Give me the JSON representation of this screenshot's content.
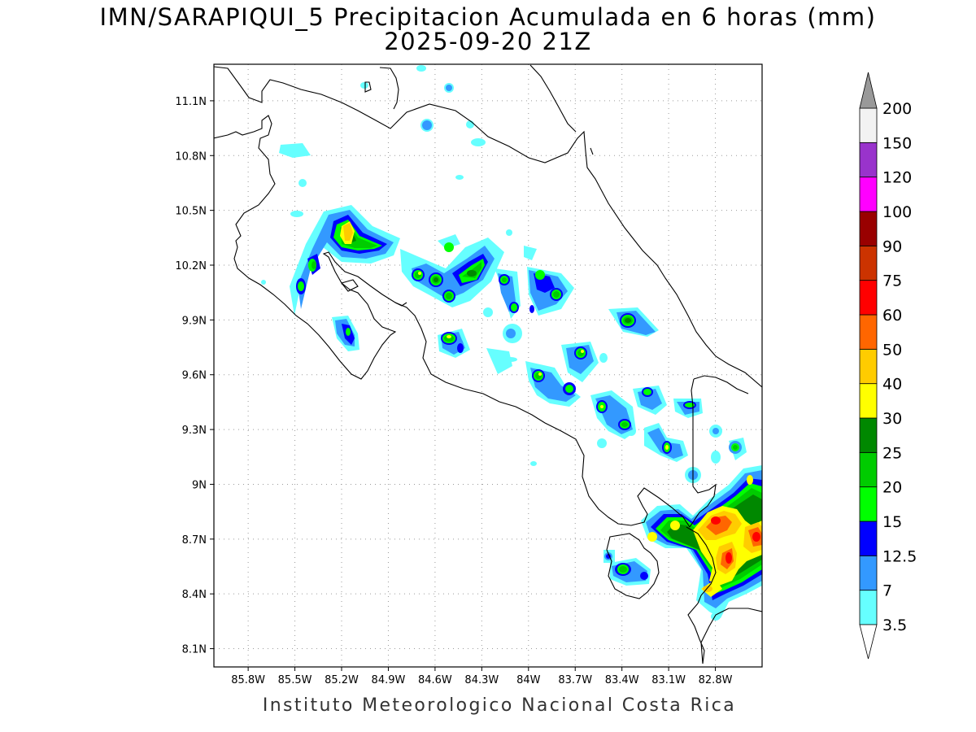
{
  "title": "IMN/SARAPIQUI_5 Precipitacion Acumulada en 6 horas (mm)",
  "subtitle": "2025-09-20 21Z",
  "footer": "Instituto Meteorologico Nacional Costa Rica",
  "map": {
    "lon_range": [
      -86.02,
      -82.5
    ],
    "lat_range": [
      8.0,
      11.3
    ],
    "lon_ticks": [
      {
        "value": -85.8,
        "label": "85.8W"
      },
      {
        "value": -85.5,
        "label": "85.5W"
      },
      {
        "value": -85.2,
        "label": "85.2W"
      },
      {
        "value": -84.9,
        "label": "84.9W"
      },
      {
        "value": -84.6,
        "label": "84.6W"
      },
      {
        "value": -84.3,
        "label": "84.3W"
      },
      {
        "value": -84.0,
        "label": "84W"
      },
      {
        "value": -83.7,
        "label": "83.7W"
      },
      {
        "value": -83.4,
        "label": "83.4W"
      },
      {
        "value": -83.1,
        "label": "83.1W"
      },
      {
        "value": -82.8,
        "label": "82.8W"
      }
    ],
    "lat_ticks": [
      {
        "value": 8.1,
        "label": "8.1N"
      },
      {
        "value": 8.4,
        "label": "8.4N"
      },
      {
        "value": 8.7,
        "label": "8.7N"
      },
      {
        "value": 9.0,
        "label": "9N"
      },
      {
        "value": 9.3,
        "label": "9.3N"
      },
      {
        "value": 9.6,
        "label": "9.6N"
      },
      {
        "value": 9.9,
        "label": "9.9N"
      },
      {
        "value": 10.2,
        "label": "10.2N"
      },
      {
        "value": 10.5,
        "label": "10.5N"
      },
      {
        "value": 10.8,
        "label": "10.8N"
      },
      {
        "value": 11.1,
        "label": "11.1N"
      }
    ],
    "grid": "dotted"
  },
  "legend": {
    "units": "mm",
    "levels": [
      "3.5",
      "7",
      "12.5",
      "15",
      "20",
      "25",
      "30",
      "40",
      "50",
      "60",
      "75",
      "90",
      "100",
      "120",
      "150",
      "200"
    ],
    "colors": [
      "#66ffff",
      "#3399ff",
      "#0000ff",
      "#00ff00",
      "#00cc00",
      "#008800",
      "#ffff00",
      "#ffcc00",
      "#ff6600",
      "#ff0000",
      "#cc3300",
      "#990000",
      "#ff00ff",
      "#9933cc",
      "#f2f2f2",
      "#999999"
    ]
  },
  "precip_cells": [
    {
      "lon": -85.08,
      "lat": 10.37,
      "peak": "40"
    },
    {
      "lon": -84.97,
      "lat": 10.35,
      "peak": "25"
    },
    {
      "lon": -85.3,
      "lat": 10.2,
      "peak": "20"
    },
    {
      "lon": -84.53,
      "lat": 10.14,
      "peak": "25"
    },
    {
      "lon": -84.62,
      "lat": 10.12,
      "peak": "30"
    },
    {
      "lon": -84.15,
      "lat": 10.1,
      "peak": "30"
    },
    {
      "lon": -83.43,
      "lat": 9.9,
      "peak": "30"
    },
    {
      "lon": -82.7,
      "lat": 8.8,
      "peak": "60"
    },
    {
      "lon": -82.8,
      "lat": 8.55,
      "peak": "60"
    },
    {
      "lon": -82.55,
      "lat": 8.75,
      "peak": "60"
    }
  ]
}
